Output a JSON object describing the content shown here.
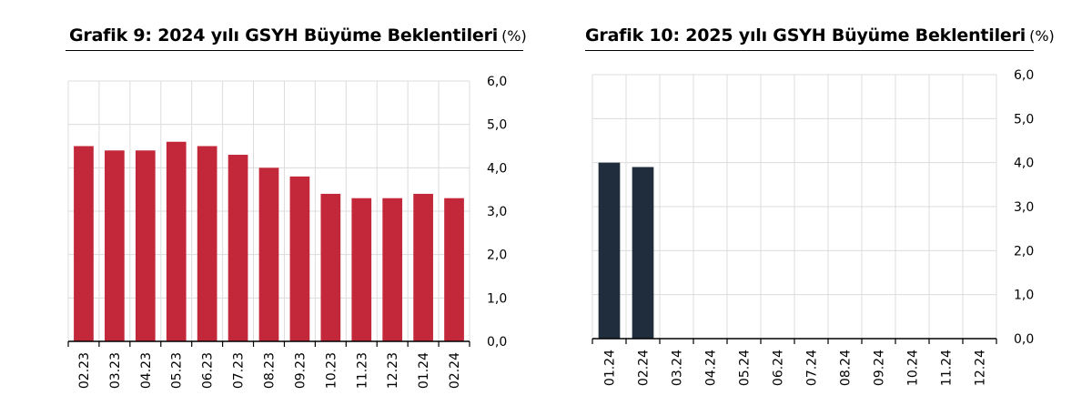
{
  "charts": [
    {
      "title_main": "Grafik 9: 2024 yılı GSYH Büyüme Beklentileri",
      "title_unit": "(%)"
    },
    {
      "title_main": "Grafik 10: 2025 yılı GSYH Büyüme Beklentileri",
      "title_unit": "(%)"
    }
  ],
  "chart_data": [
    {
      "type": "bar",
      "title": "Grafik 9: 2024 yılı GSYH Büyüme Beklentileri (%)",
      "categories": [
        "02.23",
        "03.23",
        "04.23",
        "05.23",
        "06.23",
        "07.23",
        "08.23",
        "09.23",
        "10.23",
        "11.23",
        "12.23",
        "01.24",
        "02.24"
      ],
      "values": [
        4.5,
        4.4,
        4.4,
        4.6,
        4.5,
        4.3,
        4.0,
        3.8,
        3.4,
        3.3,
        3.3,
        3.4,
        3.3
      ],
      "yticks": [
        "0,0",
        "1,0",
        "2,0",
        "3,0",
        "4,0",
        "5,0",
        "6,0"
      ],
      "ylim": [
        0,
        6
      ],
      "color": "#c3283a",
      "grid": true,
      "yaxis_side": "right"
    },
    {
      "type": "bar",
      "title": "Grafik 10: 2025 yılı GSYH Büyüme Beklentileri (%)",
      "categories": [
        "01.24",
        "02.24",
        "03.24",
        "04.24",
        "05.24",
        "06.24",
        "07.24",
        "08.24",
        "09.24",
        "10.24",
        "11.24",
        "12.24"
      ],
      "values": [
        4.0,
        3.9,
        null,
        null,
        null,
        null,
        null,
        null,
        null,
        null,
        null,
        null
      ],
      "yticks": [
        "0,0",
        "1,0",
        "2,0",
        "3,0",
        "4,0",
        "5,0",
        "6,0"
      ],
      "ylim": [
        0,
        6
      ],
      "color": "#1f2d3d",
      "grid": true,
      "yaxis_side": "right"
    }
  ]
}
